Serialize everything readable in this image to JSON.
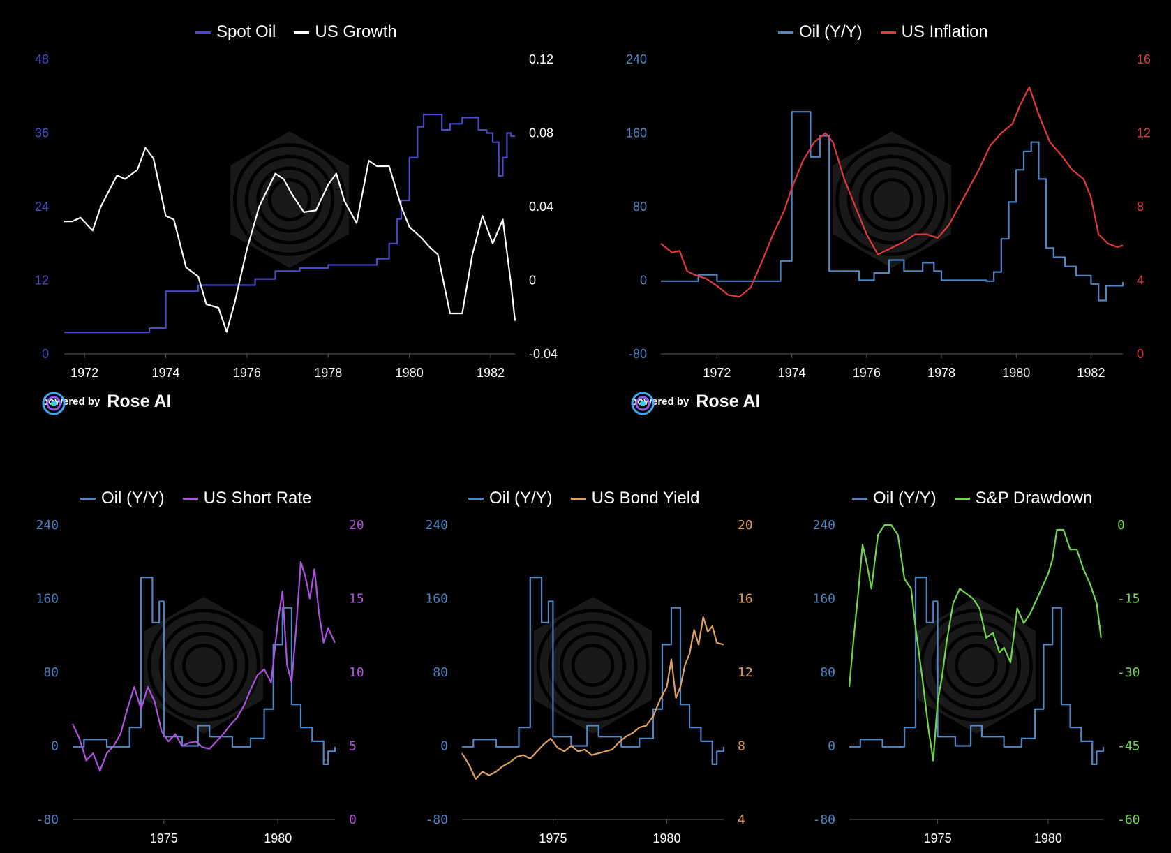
{
  "branding": {
    "prefix": "powered by",
    "name": "Rose AI"
  },
  "colors": {
    "blue": "#4f86c6",
    "indigo": "#4a4ac8",
    "white": "#ffffff",
    "red": "#e03a3a",
    "purple": "#b052e0",
    "orange": "#e0a060",
    "green": "#6ed84a",
    "axis": "#5a5a5a"
  },
  "chart_data": [
    {
      "id": "chart1",
      "type": "line",
      "legend": [
        "Spot Oil",
        "US Growth"
      ],
      "xticks": [
        "1972",
        "1974",
        "1976",
        "1978",
        "1980",
        "1982"
      ],
      "xlim": [
        1971.5,
        1982.6
      ],
      "y_left": {
        "ticks": [
          "48",
          "36",
          "24",
          "12",
          "0"
        ],
        "lim": [
          0,
          48
        ],
        "color": "#4a4ac8"
      },
      "y_right": {
        "ticks": [
          "0.12",
          "0.08",
          "0.04",
          "0",
          "-0.04"
        ],
        "lim": [
          -0.04,
          0.12
        ],
        "color": "#ffffff"
      },
      "series": [
        {
          "name": "Spot Oil",
          "axis": "left",
          "color": "#4a4ac8",
          "step": true,
          "x": [
            1971.5,
            1973.6,
            1974.0,
            1974.8,
            1976.2,
            1976.7,
            1977.3,
            1978.0,
            1979.2,
            1979.5,
            1979.7,
            1979.8,
            1980.0,
            1980.2,
            1980.35,
            1980.5,
            1980.8,
            1981.0,
            1981.3,
            1981.7,
            1981.9,
            1982.05,
            1982.2,
            1982.3,
            1982.4,
            1982.5,
            1982.6
          ],
          "y": [
            3.5,
            4.2,
            10.2,
            11.2,
            12.2,
            13.5,
            14,
            14.5,
            15.5,
            18,
            22,
            25,
            32,
            37,
            39,
            39,
            36.5,
            37.5,
            38.5,
            36.5,
            36,
            34.5,
            29,
            32,
            36,
            35.5,
            35.5
          ]
        },
        {
          "name": "US Growth",
          "axis": "right",
          "color": "#ffffff",
          "step": false,
          "x": [
            1971.5,
            1971.7,
            1971.9,
            1972.2,
            1972.4,
            1972.8,
            1973.0,
            1973.3,
            1973.5,
            1973.7,
            1974.0,
            1974.2,
            1974.5,
            1974.8,
            1975.0,
            1975.3,
            1975.5,
            1975.7,
            1976.0,
            1976.3,
            1976.7,
            1976.9,
            1977.1,
            1977.4,
            1977.7,
            1978.0,
            1978.2,
            1978.4,
            1978.7,
            1979.0,
            1979.2,
            1979.5,
            1979.8,
            1980.0,
            1980.3,
            1980.5,
            1980.7,
            1981.0,
            1981.3,
            1981.55,
            1981.8,
            1982.05,
            1982.3,
            1982.5,
            1982.6
          ],
          "y": [
            0.032,
            0.032,
            0.034,
            0.027,
            0.04,
            0.057,
            0.055,
            0.06,
            0.072,
            0.066,
            0.035,
            0.033,
            0.007,
            0.002,
            -0.013,
            -0.015,
            -0.028,
            -0.012,
            0.017,
            0.04,
            0.058,
            0.055,
            0.047,
            0.037,
            0.038,
            0.052,
            0.058,
            0.043,
            0.031,
            0.065,
            0.062,
            0.062,
            0.04,
            0.029,
            0.023,
            0.018,
            0.014,
            -0.018,
            -0.018,
            0.014,
            0.035,
            0.02,
            0.033,
            -0.002,
            -0.022
          ]
        }
      ]
    },
    {
      "id": "chart2",
      "type": "line",
      "legend": [
        "Oil (Y/Y)",
        "US Inflation"
      ],
      "xticks": [
        "1972",
        "1974",
        "1976",
        "1978",
        "1980",
        "1982"
      ],
      "xlim": [
        1970.5,
        1982.85
      ],
      "y_left": {
        "ticks": [
          "240",
          "160",
          "80",
          "0",
          "-80"
        ],
        "lim": [
          -80,
          240
        ],
        "color": "#4f86c6"
      },
      "y_right": {
        "ticks": [
          "16",
          "12",
          "8",
          "4",
          "0"
        ],
        "lim": [
          0,
          16
        ],
        "color": "#e03a3a"
      },
      "series": [
        {
          "name": "Oil (Y/Y)",
          "axis": "left",
          "color": "#4f86c6",
          "step": true,
          "x": [
            1970.5,
            1971.5,
            1972.0,
            1973.7,
            1974.0,
            1974.5,
            1974.75,
            1975.0,
            1975.8,
            1976.2,
            1976.6,
            1977.0,
            1977.5,
            1977.8,
            1978.0,
            1978.5,
            1979.2,
            1979.4,
            1979.6,
            1979.8,
            1980.0,
            1980.2,
            1980.4,
            1980.6,
            1980.8,
            1981.0,
            1981.3,
            1981.6,
            1982.0,
            1982.2,
            1982.4,
            1982.85
          ],
          "y": [
            -1,
            6,
            -1,
            21,
            183,
            134,
            157,
            10,
            0,
            8,
            22,
            10,
            19,
            10,
            0,
            0,
            -1,
            9,
            45,
            85,
            120,
            140,
            150,
            110,
            35,
            25,
            15,
            5,
            -4,
            -22,
            -6,
            -2
          ]
        },
        {
          "name": "US Inflation",
          "axis": "right",
          "color": "#e03a3a",
          "step": false,
          "x": [
            1970.5,
            1970.8,
            1971.0,
            1971.2,
            1971.4,
            1971.7,
            1972.0,
            1972.3,
            1972.6,
            1972.9,
            1973.2,
            1973.5,
            1973.8,
            1974.0,
            1974.3,
            1974.6,
            1974.9,
            1975.1,
            1975.4,
            1975.7,
            1976.0,
            1976.3,
            1976.6,
            1977.0,
            1977.3,
            1977.6,
            1977.9,
            1978.2,
            1978.6,
            1979.0,
            1979.3,
            1979.6,
            1979.9,
            1980.1,
            1980.35,
            1980.6,
            1980.9,
            1981.2,
            1981.5,
            1981.8,
            1982.0,
            1982.2,
            1982.45,
            1982.7,
            1982.85
          ],
          "y": [
            6,
            5.5,
            5.6,
            4.5,
            4.3,
            4.1,
            3.7,
            3.2,
            3.1,
            3.6,
            5,
            6.5,
            7.8,
            9,
            10.5,
            11.5,
            12,
            11.5,
            9.5,
            8,
            6.5,
            5.4,
            5.7,
            6.1,
            6.5,
            6.5,
            6.3,
            7,
            8.5,
            10,
            11.3,
            12,
            12.5,
            13.5,
            14.5,
            13,
            11.5,
            10.8,
            10,
            9.5,
            8.5,
            6.5,
            6,
            5.8,
            5.9
          ]
        }
      ]
    },
    {
      "id": "chart3",
      "type": "line",
      "legend": [
        "Oil (Y/Y)",
        "US Short Rate"
      ],
      "xticks": [
        "1975",
        "1980"
      ],
      "xlim": [
        1971.0,
        1982.5
      ],
      "y_left": {
        "ticks": [
          "240",
          "160",
          "80",
          "0",
          "-80"
        ],
        "lim": [
          -80,
          240
        ],
        "color": "#4f86c6"
      },
      "y_right": {
        "ticks": [
          "20",
          "15",
          "10",
          "5",
          "0"
        ],
        "lim": [
          0,
          20
        ],
        "color": "#b052e0"
      },
      "series": [
        {
          "name": "Oil (Y/Y)",
          "axis": "left",
          "color": "#4f86c6",
          "step": true,
          "x": [
            1971.0,
            1971.5,
            1972.5,
            1973.5,
            1974.0,
            1974.5,
            1974.8,
            1975.0,
            1975.8,
            1976.5,
            1977.0,
            1978.0,
            1978.8,
            1979.4,
            1979.8,
            1980.2,
            1980.6,
            1981.0,
            1981.5,
            1982.0,
            1982.2,
            1982.5
          ],
          "y": [
            -1,
            7,
            -1,
            20,
            183,
            134,
            157,
            10,
            0,
            22,
            10,
            -1,
            8,
            40,
            110,
            150,
            45,
            20,
            5,
            -20,
            -6,
            -1
          ]
        },
        {
          "name": "US Short Rate",
          "axis": "right",
          "color": "#b052e0",
          "step": false,
          "x": [
            1971.0,
            1971.3,
            1971.6,
            1971.9,
            1972.2,
            1972.5,
            1972.8,
            1973.1,
            1973.4,
            1973.7,
            1974.0,
            1974.3,
            1974.6,
            1974.9,
            1975.2,
            1975.5,
            1975.8,
            1976.1,
            1976.4,
            1976.7,
            1977.0,
            1977.3,
            1977.6,
            1977.9,
            1978.2,
            1978.5,
            1978.8,
            1979.1,
            1979.4,
            1979.7,
            1980.0,
            1980.2,
            1980.4,
            1980.6,
            1980.8,
            1981.0,
            1981.2,
            1981.4,
            1981.6,
            1981.8,
            1982.0,
            1982.2,
            1982.5
          ],
          "y": [
            6.5,
            5.5,
            4,
            4.5,
            3.3,
            4.5,
            5,
            5.8,
            7.5,
            9,
            7.5,
            9,
            8,
            6,
            5.3,
            5.8,
            5,
            5.2,
            5.3,
            4.9,
            4.8,
            5.3,
            5.8,
            6.4,
            6.9,
            7.7,
            8.8,
            9.8,
            10.2,
            9.3,
            13.5,
            15.5,
            10.5,
            9.3,
            13,
            17.5,
            16.5,
            15,
            17,
            14,
            12,
            13,
            12
          ]
        }
      ]
    },
    {
      "id": "chart4",
      "type": "line",
      "legend": [
        "Oil (Y/Y)",
        "US Bond Yield"
      ],
      "xticks": [
        "1975",
        "1980"
      ],
      "xlim": [
        1971.0,
        1982.5
      ],
      "y_left": {
        "ticks": [
          "240",
          "160",
          "80",
          "0",
          "-80"
        ],
        "lim": [
          -80,
          240
        ],
        "color": "#4f86c6"
      },
      "y_right": {
        "ticks": [
          "20",
          "16",
          "12",
          "8",
          "4"
        ],
        "lim": [
          4,
          20
        ],
        "color": "#e0a060"
      },
      "series": [
        {
          "name": "Oil (Y/Y)",
          "axis": "left",
          "color": "#4f86c6",
          "step": true,
          "x": [
            1971.0,
            1971.5,
            1972.5,
            1973.5,
            1974.0,
            1974.5,
            1974.8,
            1975.0,
            1975.8,
            1976.5,
            1977.0,
            1978.0,
            1978.8,
            1979.4,
            1979.8,
            1980.2,
            1980.6,
            1981.0,
            1981.5,
            1982.0,
            1982.2,
            1982.5
          ],
          "y": [
            -1,
            7,
            -1,
            20,
            183,
            134,
            157,
            10,
            0,
            22,
            10,
            -1,
            8,
            40,
            110,
            150,
            45,
            20,
            5,
            -20,
            -6,
            -1
          ]
        },
        {
          "name": "US Bond Yield",
          "axis": "right",
          "color": "#e0a060",
          "step": false,
          "x": [
            1971.0,
            1971.3,
            1971.6,
            1971.9,
            1972.2,
            1972.5,
            1972.8,
            1973.1,
            1973.4,
            1973.7,
            1974.0,
            1974.3,
            1974.6,
            1974.9,
            1975.2,
            1975.5,
            1975.8,
            1976.1,
            1976.4,
            1976.7,
            1977.0,
            1977.3,
            1977.6,
            1977.9,
            1978.2,
            1978.5,
            1978.8,
            1979.1,
            1979.4,
            1979.7,
            1980.0,
            1980.2,
            1980.4,
            1980.6,
            1980.8,
            1981.0,
            1981.2,
            1981.4,
            1981.6,
            1981.8,
            1982.0,
            1982.2,
            1982.5
          ],
          "y": [
            7.6,
            7,
            6.2,
            6.6,
            6.4,
            6.6,
            6.9,
            7.1,
            7.4,
            7.5,
            7.3,
            7.7,
            8.1,
            8.4,
            7.9,
            7.7,
            8,
            7.7,
            7.8,
            7.5,
            7.6,
            7.7,
            7.8,
            8.2,
            8.5,
            8.7,
            9,
            9.1,
            9.6,
            10.5,
            11.2,
            12.7,
            10.6,
            11.2,
            12.4,
            13,
            14.3,
            13.5,
            15,
            14.2,
            14.5,
            13.6,
            13.5
          ]
        }
      ]
    },
    {
      "id": "chart5",
      "type": "line",
      "legend": [
        "Oil (Y/Y)",
        "S&P Drawdown"
      ],
      "xticks": [
        "1975",
        "1980"
      ],
      "xlim": [
        1971.0,
        1982.5
      ],
      "y_left": {
        "ticks": [
          "240",
          "160",
          "80",
          "0",
          "-80"
        ],
        "lim": [
          -80,
          240
        ],
        "color": "#4f86c6"
      },
      "y_right": {
        "ticks": [
          "0",
          "-15",
          "-30",
          "-45",
          "-60"
        ],
        "lim": [
          -60,
          0
        ],
        "color": "#6ed84a"
      },
      "series": [
        {
          "name": "Oil (Y/Y)",
          "axis": "left",
          "color": "#4f86c6",
          "step": true,
          "x": [
            1971.0,
            1971.5,
            1972.5,
            1973.5,
            1974.0,
            1974.5,
            1974.8,
            1975.0,
            1975.8,
            1976.5,
            1977.0,
            1978.0,
            1978.8,
            1979.4,
            1979.8,
            1980.2,
            1980.6,
            1981.0,
            1981.5,
            1982.0,
            1982.2,
            1982.5
          ],
          "y": [
            -1,
            7,
            -1,
            20,
            183,
            134,
            157,
            10,
            0,
            22,
            10,
            -1,
            8,
            40,
            110,
            150,
            45,
            20,
            5,
            -20,
            -6,
            -1
          ]
        },
        {
          "name": "S&P Drawdown",
          "axis": "right",
          "color": "#6ed84a",
          "step": false,
          "x": [
            1971.0,
            1971.2,
            1971.4,
            1971.6,
            1971.8,
            1972.0,
            1972.3,
            1972.6,
            1972.9,
            1973.2,
            1973.5,
            1973.8,
            1974.0,
            1974.3,
            1974.6,
            1974.8,
            1975.0,
            1975.2,
            1975.4,
            1975.7,
            1976.0,
            1976.3,
            1976.6,
            1976.9,
            1977.2,
            1977.5,
            1977.8,
            1978.0,
            1978.3,
            1978.6,
            1978.9,
            1979.2,
            1979.5,
            1979.8,
            1980.0,
            1980.2,
            1980.4,
            1980.7,
            1981.0,
            1981.3,
            1981.6,
            1981.9,
            1982.2,
            1982.4
          ],
          "y": [
            -33,
            -23,
            -14,
            -4,
            -8,
            -13,
            -2,
            0,
            0,
            -2,
            -11,
            -13,
            -21,
            -31,
            -42,
            -48,
            -36,
            -31,
            -24,
            -16,
            -13,
            -14,
            -15,
            -17,
            -23,
            -22,
            -26,
            -25,
            -28,
            -17,
            -20,
            -18,
            -15,
            -12,
            -10,
            -7,
            -1,
            -1,
            -5,
            -5,
            -9,
            -12,
            -16,
            -23
          ]
        }
      ]
    }
  ]
}
